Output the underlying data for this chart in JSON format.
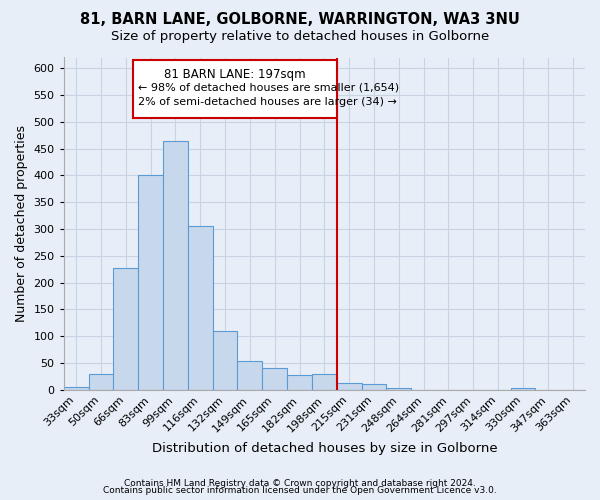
{
  "title1": "81, BARN LANE, GOLBORNE, WARRINGTON, WA3 3NU",
  "title2": "Size of property relative to detached houses in Golborne",
  "xlabel": "Distribution of detached houses by size in Golborne",
  "ylabel": "Number of detached properties",
  "footnote1": "Contains HM Land Registry data © Crown copyright and database right 2024.",
  "footnote2": "Contains public sector information licensed under the Open Government Licence v3.0.",
  "categories": [
    "33sqm",
    "50sqm",
    "66sqm",
    "83sqm",
    "99sqm",
    "116sqm",
    "132sqm",
    "149sqm",
    "165sqm",
    "182sqm",
    "198sqm",
    "215sqm",
    "231sqm",
    "248sqm",
    "264sqm",
    "281sqm",
    "297sqm",
    "314sqm",
    "330sqm",
    "347sqm",
    "363sqm"
  ],
  "values": [
    5,
    30,
    228,
    400,
    465,
    305,
    110,
    53,
    40,
    27,
    30,
    12,
    10,
    3,
    0,
    0,
    0,
    0,
    3,
    0,
    0
  ],
  "bar_color": "#c8d8ec",
  "bar_edge_color": "#5b9bd5",
  "grid_color": "#c8d4e4",
  "background_color": "#e8eef8",
  "vline_color": "#cc0000",
  "vline_label": "81 BARN LANE: 197sqm",
  "annotation_line1": "← 98% of detached houses are smaller (1,654)",
  "annotation_line2": "2% of semi-detached houses are larger (34) →",
  "annotation_box_color": "#cc0000",
  "ylim": [
    0,
    620
  ],
  "yticks": [
    0,
    50,
    100,
    150,
    200,
    250,
    300,
    350,
    400,
    450,
    500,
    550,
    600
  ],
  "title_fontsize": 10.5,
  "subtitle_fontsize": 9.5,
  "ylabel_fontsize": 9,
  "xlabel_fontsize": 9.5,
  "tick_fontsize": 8,
  "annotation_fontsize": 8.5,
  "footnote_fontsize": 6.5
}
